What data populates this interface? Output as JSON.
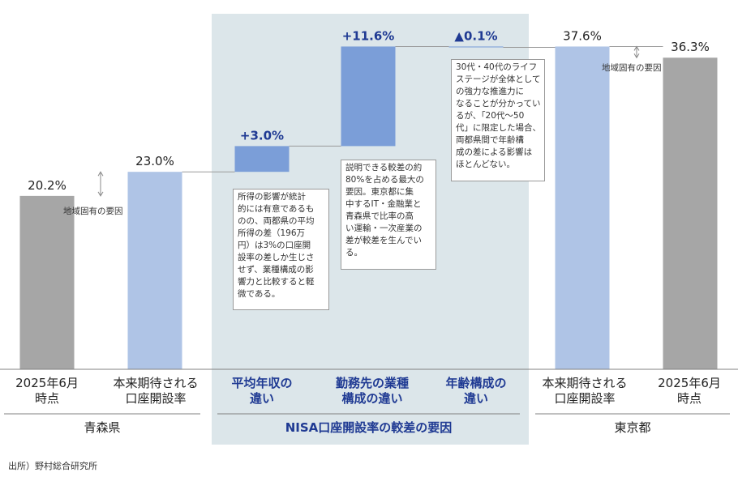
{
  "chart_data": {
    "type": "bar",
    "subtype": "waterfall",
    "ylim": [
      0,
      40
    ],
    "categories": [
      "2025年6月\n時点",
      "本来期待される\n口座開設率",
      "平均年収の\n違い",
      "勤務先の業種\n構成の違い",
      "年齢構成の\n違い",
      "本来期待される\n口座開設率",
      "2025年6月\n時点"
    ],
    "bars": [
      {
        "kind": "total",
        "base": 0,
        "value": 20.2,
        "label": "20.2%"
      },
      {
        "kind": "total",
        "base": 0,
        "value": 23.0,
        "label": "23.0%"
      },
      {
        "kind": "delta",
        "base": 23.0,
        "value": 3.0,
        "label": "+3.0%"
      },
      {
        "kind": "delta",
        "base": 26.0,
        "value": 11.6,
        "label": "+11.6%"
      },
      {
        "kind": "delta",
        "base": 37.6,
        "value": -0.1,
        "label": "▲0.1%"
      },
      {
        "kind": "total",
        "base": 0,
        "value": 37.6,
        "label": "37.6%"
      },
      {
        "kind": "total",
        "base": 0,
        "value": 36.3,
        "label": "36.3%"
      }
    ],
    "groups": [
      "青森県",
      "NISA口座開設率の較差の要因",
      "東京都"
    ],
    "annotations": {
      "regional_left": "地域固有の要因",
      "regional_right": "地域固有の要因",
      "note_income": "所得の影響が統計\n的には有意であるも\nのの、両都県の平均\n所得の差（196万\n円）は3%の口座開\n設率の差しか生じさ\nせず、業種構成の影\n響力と比較すると軽\n微である。",
      "note_industry": "説明できる較差の約\n80%を占める最大の\n要因。東京都に集\n中するIT・金融業と\n青森県で比率の高\nい運輸・一次産業の\n差が較差を生んでい\nる。",
      "note_age": "30代・40代のライフ\nステージが全体として\nの強力な推進力に\nなることが分かってい\nるが、「20代～50\n代」に限定した場合、\n両都県間で年齢構\n成の差による影響は\nほとんどない。"
    },
    "source": "出所）野村総合研究所"
  },
  "colors": {
    "gray": "#a6a6a6",
    "light_blue": "#afc4e6",
    "mid_blue": "#7b9ed8",
    "panel": "#dce6ea",
    "label_blue": "#1f3a93"
  }
}
